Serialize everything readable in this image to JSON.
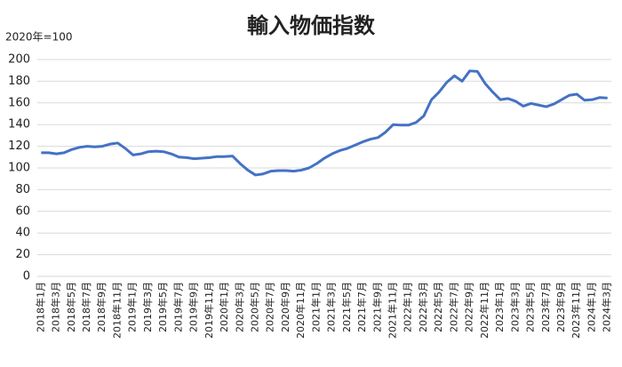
{
  "chart_data": {
    "type": "line",
    "title": "輸入物価指数",
    "unit_label": "2020年=100",
    "categories": [
      "2018年1月",
      null,
      "2018年3月",
      null,
      "2018年5月",
      null,
      "2018年7月",
      null,
      "2018年9月",
      null,
      "2018年11月",
      null,
      "2019年1月",
      null,
      "2019年3月",
      null,
      "2019年5月",
      null,
      "2019年7月",
      null,
      "2019年9月",
      null,
      "2019年11月",
      null,
      "2020年1月",
      null,
      "2020年3月",
      null,
      "2020年5月",
      null,
      "2020年7月",
      null,
      "2020年9月",
      null,
      "2020年11月",
      null,
      "2021年1月",
      null,
      "2021年3月",
      null,
      "2021年5月",
      null,
      "2021年7月",
      null,
      "2021年9月",
      null,
      "2021年11月",
      null,
      "2022年1月",
      null,
      "2022年3月",
      null,
      "2022年5月",
      null,
      "2022年7月",
      null,
      "2022年9月",
      null,
      "2022年11月",
      null,
      "2023年1月",
      null,
      "2023年3月",
      null,
      "2023年5月",
      null,
      "2023年7月",
      null,
      "2023年9月",
      null,
      "2023年11月",
      null,
      "2024年1月",
      null,
      "2024年3月"
    ],
    "values": [
      114,
      114,
      113,
      114,
      117,
      119,
      120,
      119.5,
      120,
      122,
      123,
      118,
      112,
      113,
      115,
      115.5,
      115,
      113,
      110,
      109.5,
      108.5,
      109,
      109.5,
      110.5,
      110.5,
      111,
      104,
      98,
      93.5,
      94.5,
      97,
      97.5,
      97.5,
      97,
      98,
      100,
      104,
      109,
      113,
      116,
      118,
      121,
      124,
      126.5,
      128,
      133,
      140,
      139.5,
      139.5,
      142,
      148,
      163,
      170,
      179,
      185,
      180,
      189.5,
      189,
      178,
      170,
      163,
      164,
      161.5,
      157,
      159.5,
      158,
      156.5,
      159,
      163,
      167,
      168,
      162.5,
      163,
      165,
      164.5
    ],
    "color": "#4472c4",
    "ylim": [
      0,
      200
    ],
    "yticks": [
      0,
      20,
      40,
      60,
      80,
      100,
      120,
      140,
      160,
      180,
      200
    ],
    "grid": true
  }
}
